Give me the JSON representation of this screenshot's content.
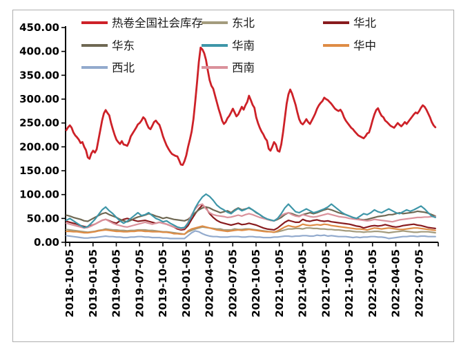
{
  "figure": {
    "background": "#ffffff",
    "border_color": "#adadad",
    "axis_color": "#000000",
    "legend_text_color": "#1a1a1a"
  },
  "chart_data": {
    "type": "line",
    "title": "",
    "xlabel": "",
    "ylabel": "",
    "grid": false,
    "legend_position": "top",
    "legend_columns": 3,
    "x_unit": "weeks since 2018-10-05",
    "x_range": [
      0,
      206
    ],
    "x_tick_interval_weeks": 13,
    "x_tick_labels": [
      "2018-10-05",
      "2019-01-05",
      "2019-04-05",
      "2019-07-05",
      "2019-10-05",
      "2020-01-05",
      "2020-04-05",
      "2020-07-05",
      "2020-10-05",
      "2021-01-05",
      "2021-04-05",
      "2021-07-05",
      "2021-10-05",
      "2022-01-05",
      "2022-04-05",
      "2022-07-05"
    ],
    "ylim": [
      0,
      450
    ],
    "y_tick_step": 50,
    "y_tick_labels": [
      "450.00",
      "400.00",
      "350.00",
      "300.00",
      "250.00",
      "200.00",
      "150.00",
      "100.00",
      "50.00",
      "0.00"
    ],
    "draw_order": [
      "northeast",
      "north",
      "east",
      "central",
      "northwest",
      "southwest",
      "south",
      "hrc-national"
    ],
    "series": [
      {
        "id": "hrc-national",
        "name": "热卷全国社会库存",
        "color": "#CD2128",
        "stroke_width": 2.8,
        "x_start": 0,
        "x_step": 1,
        "values": [
          235,
          241,
          245,
          240,
          230,
          224,
          220,
          215,
          208,
          210,
          200,
          193,
          178,
          175,
          186,
          192,
          188,
          195,
          215,
          235,
          255,
          270,
          277,
          271,
          266,
          250,
          237,
          225,
          215,
          210,
          206,
          212,
          205,
          204,
          202,
          210,
          222,
          228,
          234,
          240,
          247,
          250,
          255,
          262,
          258,
          248,
          240,
          237,
          244,
          252,
          255,
          250,
          246,
          235,
          222,
          212,
          203,
          196,
          190,
          185,
          183,
          181,
          180,
          172,
          163,
          162,
          170,
          182,
          200,
          215,
          232,
          258,
          295,
          335,
          378,
          408,
          404,
          396,
          382,
          360,
          340,
          328,
          322,
          308,
          294,
          280,
          268,
          255,
          248,
          252,
          260,
          265,
          272,
          280,
          272,
          264,
          268,
          276,
          284,
          278,
          287,
          294,
          307,
          298,
          288,
          282,
          262,
          250,
          240,
          232,
          226,
          218,
          213,
          196,
          192,
          200,
          210,
          205,
          192,
          190,
          205,
          230,
          260,
          290,
          310,
          320,
          312,
          300,
          288,
          272,
          258,
          250,
          247,
          252,
          258,
          252,
          248,
          255,
          262,
          270,
          280,
          287,
          292,
          296,
          303,
          300,
          298,
          294,
          290,
          285,
          280,
          277,
          275,
          278,
          272,
          262,
          255,
          250,
          245,
          240,
          237,
          232,
          228,
          224,
          222,
          220,
          218,
          222,
          228,
          230,
          242,
          256,
          268,
          277,
          281,
          272,
          265,
          262,
          255,
          252,
          248,
          244,
          242,
          240,
          245,
          250,
          246,
          243,
          247,
          252,
          248,
          253,
          258,
          263,
          268,
          272,
          270,
          275,
          282,
          287,
          284,
          278,
          270,
          262,
          252,
          245,
          241
        ]
      },
      {
        "id": "northeast",
        "name": "东北",
        "color": "#A39B7D",
        "stroke_width": 2.2,
        "x_start": 0,
        "x_step": 2,
        "values": [
          27,
          26,
          25,
          24,
          23,
          22,
          21,
          22,
          23,
          25,
          26,
          28,
          27,
          26,
          26,
          25,
          25,
          24,
          25,
          25,
          26,
          26,
          26,
          25,
          25,
          24,
          23,
          22,
          22,
          21,
          20,
          19,
          18,
          17,
          22,
          25,
          28,
          30,
          32,
          31,
          30,
          29,
          28,
          28,
          26,
          26,
          26,
          28,
          27,
          27,
          28,
          28,
          27,
          26,
          25,
          24,
          23,
          22,
          21,
          22,
          24,
          26,
          28,
          28,
          29,
          29,
          28,
          30,
          30,
          29,
          29,
          28,
          28,
          27,
          27,
          26,
          26,
          25,
          24,
          24,
          23,
          22,
          22,
          21,
          22,
          22,
          23,
          23,
          22,
          21,
          20,
          21,
          22,
          23,
          24,
          23,
          22,
          21,
          21,
          22,
          22,
          22,
          21,
          20
        ]
      },
      {
        "id": "north",
        "name": "华北",
        "color": "#881B1E",
        "stroke_width": 2.2,
        "x_start": 0,
        "x_step": 2,
        "values": [
          44,
          42,
          40,
          38,
          35,
          33,
          32,
          35,
          38,
          42,
          46,
          48,
          45,
          42,
          40,
          45,
          48,
          50,
          48,
          46,
          44,
          45,
          46,
          44,
          42,
          40,
          42,
          40,
          38,
          35,
          32,
          28,
          26,
          27,
          35,
          48,
          60,
          70,
          78,
          72,
          60,
          52,
          46,
          42,
          40,
          38,
          36,
          38,
          40,
          37,
          38,
          40,
          38,
          36,
          33,
          30,
          28,
          27,
          26,
          30,
          36,
          42,
          46,
          44,
          42,
          42,
          48,
          45,
          44,
          46,
          47,
          45,
          44,
          45,
          43,
          42,
          41,
          40,
          39,
          38,
          36,
          34,
          33,
          30,
          32,
          34,
          35,
          34,
          35,
          37,
          35,
          33,
          32,
          33,
          35,
          36,
          37,
          38,
          36,
          35,
          33,
          31,
          30,
          29
        ]
      },
      {
        "id": "east",
        "name": "华东",
        "color": "#6F6853",
        "stroke_width": 2.2,
        "x_start": 0,
        "x_step": 2,
        "values": [
          57,
          55,
          52,
          50,
          48,
          45,
          44,
          48,
          52,
          56,
          60,
          62,
          58,
          55,
          52,
          48,
          45,
          43,
          46,
          50,
          53,
          55,
          57,
          60,
          58,
          55,
          53,
          50,
          52,
          50,
          48,
          47,
          46,
          45,
          48,
          55,
          62,
          68,
          72,
          74,
          72,
          68,
          65,
          62,
          64,
          66,
          62,
          68,
          72,
          68,
          70,
          72,
          68,
          62,
          58,
          52,
          48,
          46,
          45,
          48,
          52,
          58,
          62,
          60,
          57,
          55,
          58,
          60,
          62,
          60,
          62,
          65,
          68,
          70,
          68,
          65,
          62,
          60,
          58,
          55,
          52,
          50,
          48,
          47,
          48,
          50,
          52,
          54,
          55,
          56,
          58,
          58,
          60,
          62,
          60,
          61,
          62,
          63,
          65,
          64,
          63,
          61,
          58,
          55
        ]
      },
      {
        "id": "south",
        "name": "华南",
        "color": "#3E96A8",
        "stroke_width": 2.2,
        "x_start": 0,
        "x_step": 2,
        "values": [
          46,
          50,
          45,
          40,
          35,
          31,
          33,
          40,
          48,
          58,
          68,
          74,
          66,
          60,
          52,
          45,
          40,
          44,
          50,
          56,
          62,
          56,
          58,
          62,
          56,
          50,
          47,
          43,
          45,
          40,
          36,
          32,
          30,
          31,
          40,
          55,
          72,
          85,
          95,
          101,
          96,
          88,
          78,
          72,
          68,
          63,
          60,
          66,
          71,
          66,
          69,
          73,
          68,
          63,
          58,
          53,
          49,
          47,
          45,
          50,
          60,
          72,
          80,
          72,
          64,
          62,
          66,
          70,
          66,
          62,
          64,
          67,
          70,
          74,
          80,
          74,
          68,
          62,
          58,
          55,
          52,
          50,
          55,
          60,
          58,
          62,
          68,
          64,
          62,
          66,
          70,
          66,
          62,
          60,
          64,
          68,
          65,
          68,
          72,
          76,
          70,
          62,
          55,
          52
        ]
      },
      {
        "id": "central",
        "name": "华中",
        "color": "#DE8C45",
        "stroke_width": 2.2,
        "x_start": 0,
        "x_step": 2,
        "values": [
          23,
          23,
          22,
          22,
          21,
          20,
          20,
          21,
          22,
          24,
          25,
          26,
          25,
          24,
          23,
          23,
          22,
          22,
          23,
          23,
          24,
          24,
          23,
          23,
          22,
          22,
          22,
          21,
          21,
          20,
          18,
          18,
          17,
          17,
          24,
          28,
          30,
          32,
          34,
          32,
          30,
          28,
          26,
          25,
          24,
          23,
          24,
          25,
          26,
          25,
          26,
          27,
          26,
          25,
          24,
          23,
          22,
          22,
          21,
          24,
          28,
          32,
          35,
          33,
          32,
          34,
          38,
          36,
          35,
          36,
          37,
          36,
          38,
          37,
          35,
          34,
          33,
          32,
          31,
          30,
          29,
          28,
          28,
          27,
          26,
          28,
          30,
          29,
          28,
          29,
          30,
          29,
          28,
          27,
          27,
          28,
          29,
          30,
          30,
          29,
          28,
          27,
          26,
          25
        ]
      },
      {
        "id": "northwest",
        "name": "西北",
        "color": "#92AACD",
        "stroke_width": 2.2,
        "x_start": 0,
        "x_step": 2,
        "values": [
          14,
          13,
          12,
          11,
          10,
          9,
          9,
          10,
          10,
          11,
          12,
          13,
          12,
          12,
          11,
          11,
          10,
          10,
          11,
          11,
          12,
          12,
          11,
          11,
          10,
          10,
          10,
          9,
          9,
          8,
          8,
          8,
          8,
          8,
          14,
          20,
          24,
          22,
          18,
          15,
          13,
          12,
          12,
          11,
          11,
          11,
          12,
          12,
          12,
          11,
          11,
          12,
          12,
          11,
          11,
          10,
          10,
          10,
          11,
          11,
          12,
          13,
          13,
          12,
          13,
          13,
          14,
          14,
          13,
          13,
          15,
          14,
          15,
          13,
          14,
          13,
          12,
          12,
          12,
          11,
          10,
          11,
          10,
          11,
          11,
          12,
          12,
          11,
          11,
          10,
          8,
          9,
          10,
          11,
          12,
          12,
          13,
          13,
          12,
          13,
          13,
          12,
          12,
          12
        ]
      },
      {
        "id": "southwest",
        "name": "西南",
        "color": "#DA919B",
        "stroke_width": 2.2,
        "x_start": 0,
        "x_step": 2,
        "values": [
          40,
          38,
          36,
          34,
          32,
          30,
          31,
          34,
          38,
          42,
          46,
          48,
          44,
          40,
          37,
          35,
          33,
          32,
          34,
          36,
          38,
          40,
          42,
          40,
          38,
          40,
          42,
          40,
          38,
          35,
          32,
          30,
          28,
          30,
          42,
          58,
          70,
          78,
          80,
          70,
          62,
          58,
          56,
          55,
          54,
          52,
          53,
          55,
          57,
          55,
          58,
          60,
          58,
          55,
          52,
          50,
          48,
          46,
          45,
          50,
          56,
          60,
          62,
          58,
          55,
          54,
          58,
          56,
          54,
          53,
          54,
          56,
          58,
          60,
          58,
          56,
          54,
          53,
          52,
          50,
          49,
          48,
          47,
          46,
          45,
          46,
          48,
          47,
          46,
          45,
          44,
          43,
          45,
          47,
          48,
          49,
          50,
          51,
          52,
          52,
          53,
          53,
          54,
          54
        ]
      }
    ]
  }
}
